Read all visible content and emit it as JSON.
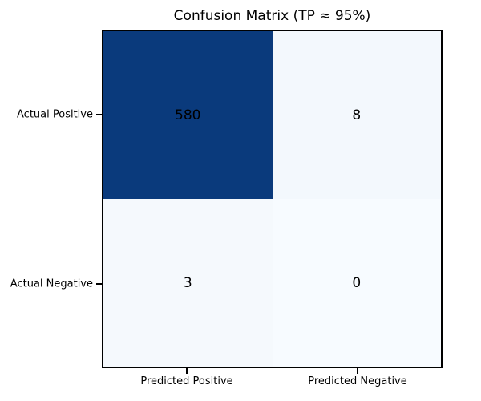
{
  "chart_data": {
    "type": "heatmap",
    "title": "Confusion Matrix (TP ≈ 95%)",
    "row_labels": [
      "Actual Positive",
      "Actual Negative"
    ],
    "col_labels": [
      "Predicted Positive",
      "Predicted Negative"
    ],
    "values": [
      [
        580,
        8
      ],
      [
        3,
        0
      ]
    ],
    "cell_colors": [
      [
        "#0a3a7c",
        "#f3f8fd"
      ],
      [
        "#f5f9fd",
        "#f7fbff"
      ]
    ],
    "value_text_color": "#000000",
    "border_color": "#000000",
    "legend": "none",
    "grid": "off"
  }
}
